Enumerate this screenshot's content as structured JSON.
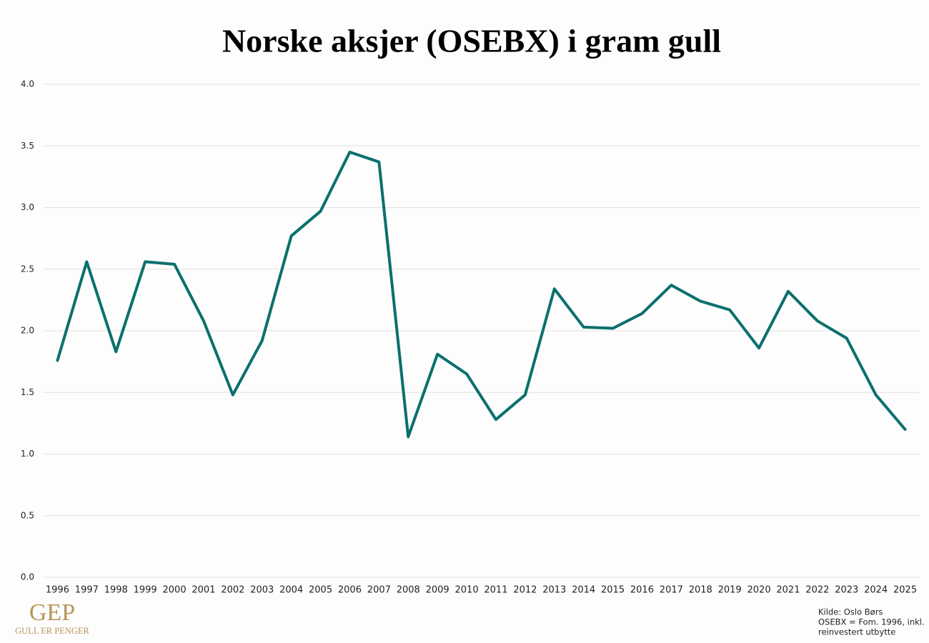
{
  "chart_data": {
    "type": "line",
    "title": "Norske aksjer (OSEBX) i gram gull",
    "categories": [
      "1996",
      "1997",
      "1998",
      "1999",
      "2000",
      "2001",
      "2002",
      "2003",
      "2004",
      "2005",
      "2006",
      "2007",
      "2008",
      "2009",
      "2010",
      "2011",
      "2012",
      "2013",
      "2014",
      "2015",
      "2016",
      "2017",
      "2018",
      "2019",
      "2020",
      "2021",
      "2022",
      "2023",
      "2024",
      "2025"
    ],
    "values": [
      1.76,
      2.56,
      1.83,
      2.56,
      2.54,
      2.08,
      1.48,
      1.92,
      2.77,
      2.97,
      3.45,
      3.37,
      1.14,
      1.81,
      1.65,
      1.28,
      1.48,
      2.34,
      2.03,
      2.02,
      2.14,
      2.37,
      2.24,
      2.17,
      1.86,
      2.32,
      2.08,
      1.94,
      1.48,
      1.2
    ],
    "color": "#0b706d",
    "ylim": [
      0,
      4
    ],
    "yticks": [
      {
        "value": 0,
        "label": "0.0"
      },
      0.5,
      {
        "value": 1,
        "label": "1.0"
      },
      1.5,
      {
        "value": 2,
        "label": "2.0"
      },
      2.5,
      {
        "value": 3,
        "label": "3.0"
      },
      3.5,
      {
        "value": 4,
        "label": "4.0"
      }
    ],
    "grid": true,
    "logo": {
      "mark": "GEP",
      "text": "GULL ER PENGER"
    },
    "notes": [
      "Kilde: Oslo Børs",
      "OSEBX = Fom. 1996, inkl.",
      "reinvestert utbytte"
    ]
  }
}
